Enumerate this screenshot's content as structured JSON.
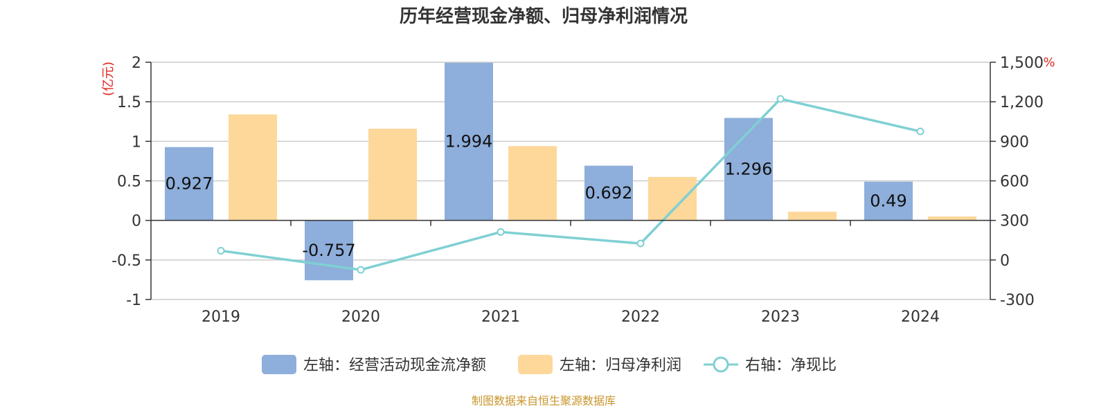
{
  "chart_data": {
    "type": "bar",
    "title": "历年经营现金净额、归母净利润情况",
    "categories": [
      "2019",
      "2020",
      "2021",
      "2022",
      "2023",
      "2024"
    ],
    "left_axis": {
      "unit": "(亿元)",
      "ylim": [
        -1,
        2
      ],
      "ticks": [
        "2",
        "1.5",
        "1",
        "0.5",
        "0",
        "-0.5",
        "-1"
      ],
      "tick_values": [
        2,
        1.5,
        1,
        0.5,
        0,
        -0.5,
        -1
      ]
    },
    "right_axis": {
      "unit": "%",
      "ylim": [
        -300,
        1500
      ],
      "ticks": [
        "1,500",
        "1,200",
        "900",
        "600",
        "300",
        "0",
        "-300"
      ],
      "tick_values": [
        1500,
        1200,
        900,
        600,
        300,
        0,
        -300
      ]
    },
    "series": [
      {
        "name": "左轴：经营活动现金流净额",
        "type": "bar",
        "axis": "left",
        "color": "#8eaedb",
        "values": [
          0.927,
          -0.757,
          1.994,
          0.692,
          1.296,
          0.49
        ],
        "labels": [
          "0.927",
          "-0.757",
          "1.994",
          "0.692",
          "1.296",
          "0.49"
        ]
      },
      {
        "name": "左轴：归母净利润",
        "type": "bar",
        "axis": "left",
        "color": "#fdd89a",
        "values": [
          1.34,
          1.16,
          0.94,
          0.55,
          0.11,
          0.05
        ]
      },
      {
        "name": "右轴：净现比",
        "type": "line",
        "axis": "right",
        "color": "#7fd0d3",
        "values": [
          70,
          -75,
          212,
          125,
          1222,
          975
        ]
      }
    ],
    "legend": "bottom",
    "grid": true
  },
  "source": "制图数据来自恒生聚源数据库"
}
